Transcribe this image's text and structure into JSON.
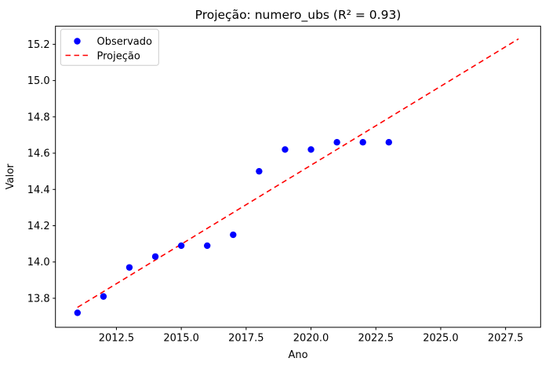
{
  "figure": {
    "background": "#ffffff",
    "spine_color": "#000000",
    "tick_color": "#000000"
  },
  "chart_data": {
    "type": "scatter",
    "title": "Projeção: numero_ubs (R² = 0.93)",
    "xlabel": "Ano",
    "ylabel": "Valor",
    "xlim": [
      2010.15,
      2028.85
    ],
    "ylim": [
      13.64,
      15.3
    ],
    "x_ticks": [
      2012.5,
      2015.0,
      2017.5,
      2020.0,
      2022.5,
      2025.0,
      2027.5
    ],
    "x_tick_labels": [
      "2012.5",
      "2015.0",
      "2017.5",
      "2020.0",
      "2022.5",
      "2025.0",
      "2027.5"
    ],
    "y_ticks": [
      13.8,
      14.0,
      14.2,
      14.4,
      14.6,
      14.8,
      15.0,
      15.2
    ],
    "y_tick_labels": [
      "13.8",
      "14.0",
      "14.2",
      "14.4",
      "14.6",
      "14.8",
      "15.0",
      "15.2"
    ],
    "grid": false,
    "legend": {
      "position": "upper-left",
      "entries": [
        {
          "label": "Observado",
          "type": "marker",
          "color": "#0000ff"
        },
        {
          "label": "Projeção",
          "type": "dashed-line",
          "color": "#ff0000"
        }
      ]
    },
    "series": [
      {
        "name": "Observado",
        "type": "scatter",
        "color": "#0000ff",
        "marker": "circle",
        "x": [
          2011,
          2012,
          2013,
          2014,
          2015,
          2016,
          2017,
          2018,
          2019,
          2020,
          2021,
          2022,
          2023
        ],
        "y": [
          13.72,
          13.81,
          13.97,
          14.03,
          14.09,
          14.09,
          14.15,
          14.5,
          14.62,
          14.62,
          14.66,
          14.66,
          14.66
        ]
      },
      {
        "name": "Projeção",
        "type": "line",
        "style": "dashed",
        "color": "#ff0000",
        "x": [
          2011,
          2028
        ],
        "y": [
          13.75,
          15.23
        ]
      }
    ]
  }
}
